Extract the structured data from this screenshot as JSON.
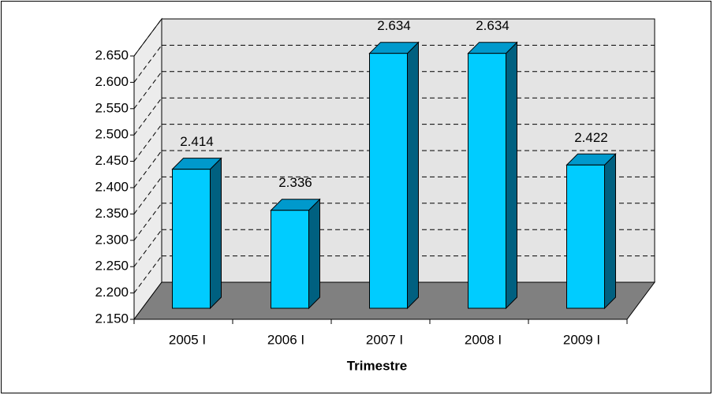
{
  "chart_data": {
    "type": "bar3d",
    "x_label": "Trimestre",
    "categories": [
      "2005 I",
      "2006 I",
      "2007 I",
      "2008 I",
      "2009 I"
    ],
    "values": [
      2414,
      2336,
      2634,
      2634,
      2422
    ],
    "value_labels": [
      "2.414",
      "2.336",
      "2.634",
      "2.634",
      "2.422"
    ],
    "color": "#00ccff",
    "ylim": [
      2150,
      2650
    ],
    "yticks": [
      {
        "value": 2150,
        "label": "2.150"
      },
      {
        "value": 2200,
        "label": "2.200"
      },
      {
        "value": 2250,
        "label": "2.250"
      },
      {
        "value": 2300,
        "label": "2.300"
      },
      {
        "value": 2350,
        "label": "2.350"
      },
      {
        "value": 2400,
        "label": "2.400"
      },
      {
        "value": 2450,
        "label": "2.450"
      },
      {
        "value": 2500,
        "label": "2.500"
      },
      {
        "value": 2550,
        "label": "2.550"
      },
      {
        "value": 2600,
        "label": "2.600"
      },
      {
        "value": 2650,
        "label": "2.650"
      }
    ],
    "grid": true
  }
}
